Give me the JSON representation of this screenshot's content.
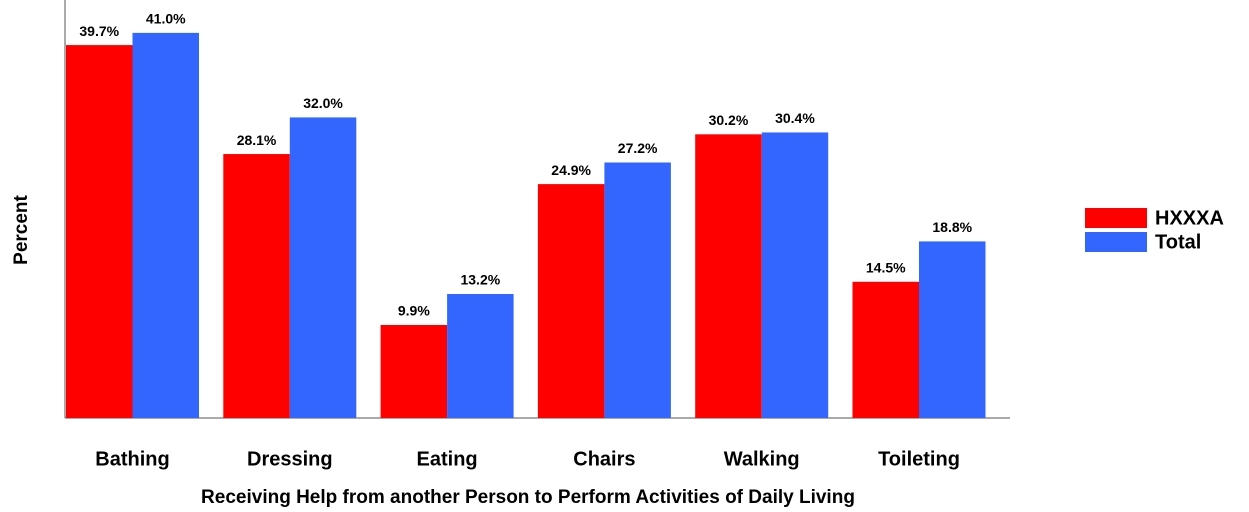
{
  "chart_data": {
    "type": "bar",
    "categories": [
      "Bathing",
      "Dressing",
      "Eating",
      "Chairs",
      "Walking",
      "Toileting"
    ],
    "series": [
      {
        "name": "HXXXA",
        "color": "#ff0000",
        "values": [
          39.7,
          28.1,
          9.9,
          24.9,
          30.2,
          14.5
        ],
        "value_labels": [
          "39.7%",
          "28.1%",
          "9.9%",
          "24.9%",
          "30.2%",
          "14.5%"
        ]
      },
      {
        "name": "Total",
        "color": "#3366ff",
        "values": [
          41.0,
          32.0,
          13.2,
          27.2,
          30.4,
          18.8
        ],
        "value_labels": [
          "41.0%",
          "32.0%",
          "13.2%",
          "27.2%",
          "30.4%",
          "18.8%"
        ]
      }
    ],
    "xlabel": "Receiving Help from another Person to Perform Activities of Daily Living",
    "ylabel": "Percent",
    "ylim": [
      0,
      44.5
    ],
    "legend": "right"
  }
}
